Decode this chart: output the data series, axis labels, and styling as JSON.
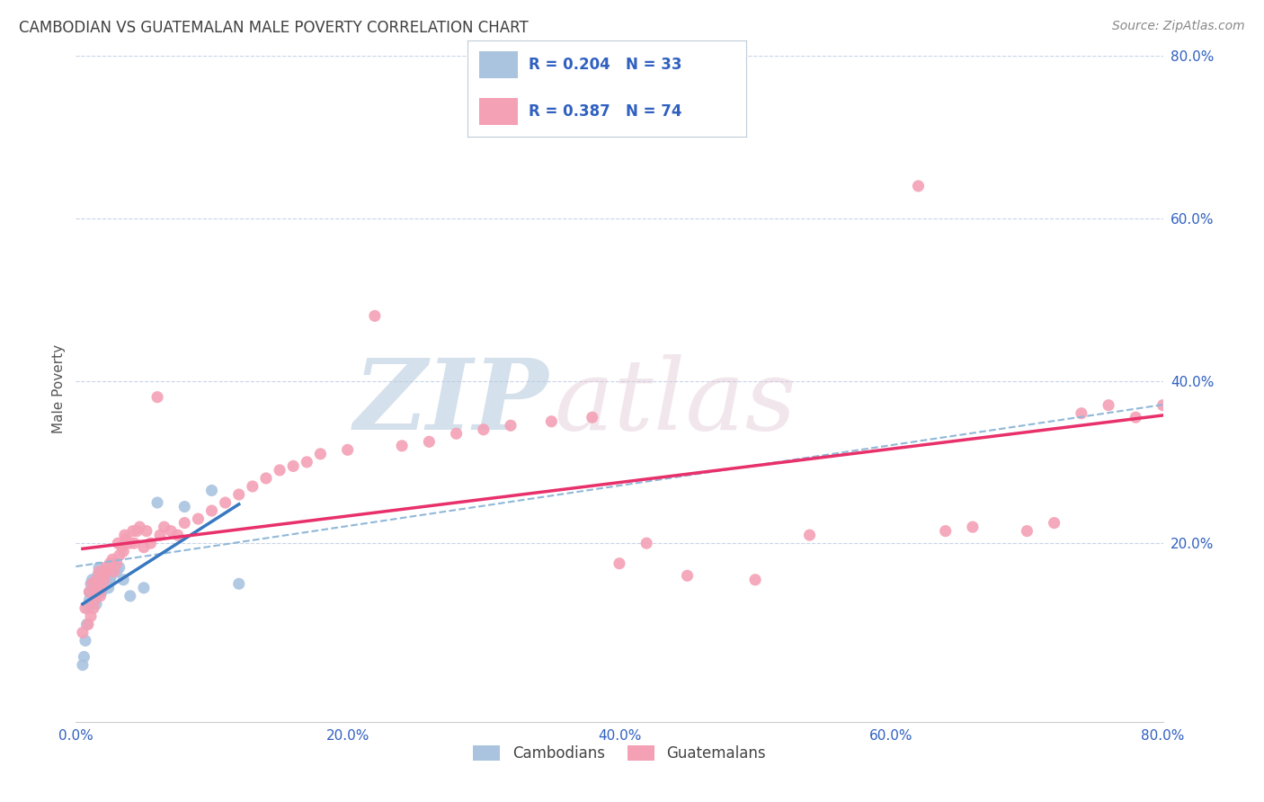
{
  "title": "CAMBODIAN VS GUATEMALAN MALE POVERTY CORRELATION CHART",
  "source": "Source: ZipAtlas.com",
  "ylabel": "Male Poverty",
  "xlim": [
    0.0,
    0.8
  ],
  "ylim": [
    -0.02,
    0.8
  ],
  "xtick_vals": [
    0.0,
    0.2,
    0.4,
    0.6,
    0.8
  ],
  "ytick_vals": [
    0.2,
    0.4,
    0.6,
    0.8
  ],
  "cambodian_color": "#aac4e0",
  "guatemalan_color": "#f4a0b5",
  "cambodian_line_color": "#3878c0",
  "guatemalan_line_color": "#e8306a",
  "dashed_line_color": "#90b8d8",
  "R_cam": 0.204,
  "N_cam": 33,
  "R_gua": 0.387,
  "N_gua": 74,
  "legend_text_color": "#3060c0",
  "background_color": "#ffffff",
  "grid_color": "#c8d4e8",
  "title_color": "#404040",
  "source_color": "#888888",
  "ylabel_color": "#555555",
  "tick_color": "#3060c0",
  "cambodian_x": [
    0.005,
    0.006,
    0.007,
    0.008,
    0.009,
    0.01,
    0.01,
    0.011,
    0.012,
    0.013,
    0.014,
    0.015,
    0.015,
    0.016,
    0.017,
    0.018,
    0.019,
    0.02,
    0.021,
    0.022,
    0.024,
    0.025,
    0.026,
    0.028,
    0.03,
    0.032,
    0.035,
    0.04,
    0.05,
    0.06,
    0.08,
    0.1,
    0.12
  ],
  "cambodian_y": [
    0.05,
    0.06,
    0.08,
    0.1,
    0.12,
    0.13,
    0.14,
    0.15,
    0.155,
    0.145,
    0.13,
    0.125,
    0.135,
    0.16,
    0.17,
    0.155,
    0.14,
    0.16,
    0.165,
    0.15,
    0.145,
    0.155,
    0.16,
    0.175,
    0.165,
    0.17,
    0.155,
    0.135,
    0.145,
    0.25,
    0.245,
    0.265,
    0.15
  ],
  "guatemalan_x": [
    0.005,
    0.007,
    0.009,
    0.01,
    0.011,
    0.012,
    0.013,
    0.014,
    0.015,
    0.016,
    0.017,
    0.018,
    0.019,
    0.02,
    0.021,
    0.022,
    0.023,
    0.025,
    0.027,
    0.028,
    0.03,
    0.031,
    0.032,
    0.034,
    0.035,
    0.036,
    0.037,
    0.04,
    0.042,
    0.043,
    0.045,
    0.047,
    0.05,
    0.052,
    0.055,
    0.06,
    0.062,
    0.065,
    0.07,
    0.075,
    0.08,
    0.09,
    0.1,
    0.11,
    0.12,
    0.13,
    0.14,
    0.15,
    0.16,
    0.17,
    0.18,
    0.2,
    0.22,
    0.24,
    0.26,
    0.28,
    0.3,
    0.32,
    0.35,
    0.38,
    0.4,
    0.42,
    0.45,
    0.5,
    0.54,
    0.62,
    0.64,
    0.66,
    0.7,
    0.72,
    0.74,
    0.76,
    0.78,
    0.8
  ],
  "guatemalan_y": [
    0.09,
    0.12,
    0.1,
    0.14,
    0.11,
    0.15,
    0.12,
    0.13,
    0.155,
    0.14,
    0.165,
    0.135,
    0.145,
    0.16,
    0.155,
    0.17,
    0.165,
    0.175,
    0.18,
    0.165,
    0.175,
    0.2,
    0.185,
    0.195,
    0.19,
    0.21,
    0.205,
    0.2,
    0.215,
    0.2,
    0.215,
    0.22,
    0.195,
    0.215,
    0.2,
    0.38,
    0.21,
    0.22,
    0.215,
    0.21,
    0.225,
    0.23,
    0.24,
    0.25,
    0.26,
    0.27,
    0.28,
    0.29,
    0.295,
    0.3,
    0.31,
    0.315,
    0.48,
    0.32,
    0.325,
    0.335,
    0.34,
    0.345,
    0.35,
    0.355,
    0.175,
    0.2,
    0.16,
    0.155,
    0.21,
    0.64,
    0.215,
    0.22,
    0.215,
    0.225,
    0.36,
    0.37,
    0.355,
    0.37
  ]
}
